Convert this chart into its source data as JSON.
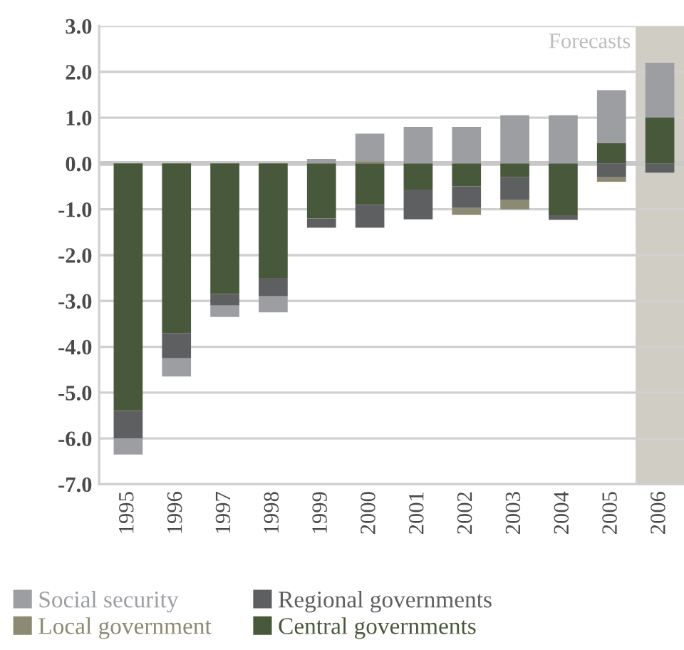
{
  "chart_data": {
    "type": "bar",
    "stacked": true,
    "categories": [
      "1995",
      "1996",
      "1997",
      "1998",
      "1999",
      "2000",
      "2001",
      "2002",
      "2003",
      "2004",
      "2005",
      "2006"
    ],
    "series": [
      {
        "name": "Central governments",
        "color": "#48593b",
        "values": [
          -5.4,
          -3.7,
          -2.85,
          -2.5,
          -1.2,
          -0.9,
          -0.57,
          -0.5,
          -0.3,
          -1.13,
          0.45,
          1.0
        ]
      },
      {
        "name": "Regional governments",
        "color": "#5e5f61",
        "values": [
          -0.6,
          -0.55,
          -0.25,
          -0.4,
          -0.2,
          -0.5,
          -0.65,
          -0.47,
          -0.5,
          -0.1,
          -0.3,
          -0.2
        ]
      },
      {
        "name": "Local government",
        "color": "#8c8a72",
        "values": [
          0,
          0,
          0,
          0,
          0,
          0.05,
          0,
          -0.15,
          -0.2,
          0,
          -0.1,
          0
        ]
      },
      {
        "name": "Social security",
        "color": "#9d9ea2",
        "values": [
          -0.35,
          -0.4,
          -0.25,
          -0.35,
          0.1,
          0.6,
          0.8,
          0.8,
          1.05,
          1.05,
          1.15,
          1.2
        ]
      }
    ],
    "ylim": [
      -7,
      3
    ],
    "yticks": [
      {
        "value": 3,
        "label": "3.0"
      },
      {
        "value": 2,
        "label": "2.0"
      },
      {
        "value": 1,
        "label": "1.0"
      },
      {
        "value": 0,
        "label": "0.0"
      },
      {
        "value": -1,
        "label": "-1.0"
      },
      {
        "value": -2,
        "label": "-2.0"
      },
      {
        "value": -3,
        "label": "-3.0"
      },
      {
        "value": -4,
        "label": "-4.0"
      },
      {
        "value": -5,
        "label": "-5.0"
      },
      {
        "value": -6,
        "label": "-6.0"
      },
      {
        "value": -7,
        "label": "-7.0"
      }
    ],
    "bands": [
      {
        "axis": "x",
        "from": "2006",
        "to": "2006",
        "label": "Forecasts",
        "color": "#d0cdc5"
      }
    ],
    "grid": "y",
    "legend": "bottom"
  }
}
